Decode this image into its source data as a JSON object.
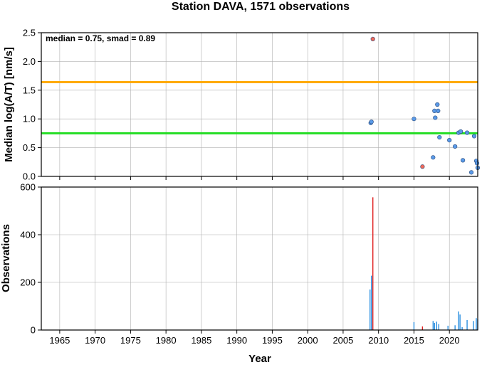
{
  "chart_data": [
    {
      "type": "scatter",
      "title": "Station DAVA, 1571 observations",
      "xlabel": "",
      "ylabel": "Median log(A/T) [nm/s]",
      "annotation": "median = 0.75, smad = 0.89",
      "xlim": [
        1962.4,
        2024.0
      ],
      "ylim": [
        0,
        2.5
      ],
      "xticks": [
        1965,
        1970,
        1975,
        1980,
        1985,
        1990,
        1995,
        2000,
        2005,
        2010,
        2015,
        2020
      ],
      "yticks": [
        0.0,
        0.5,
        1.0,
        1.5,
        2.0,
        2.5
      ],
      "grid": true,
      "hlines": [
        {
          "label": "median",
          "value": 0.75,
          "color": "#22dd22"
        },
        {
          "label": "median + smad",
          "value": 1.64,
          "color": "#ffaa00"
        }
      ],
      "series": [
        {
          "color": "#5a9ae8",
          "points": [
            {
              "x": 2008.9,
              "y": 0.93
            },
            {
              "x": 2009.0,
              "y": 0.95
            },
            {
              "x": 2015.0,
              "y": 1.0
            },
            {
              "x": 2017.7,
              "y": 0.33
            },
            {
              "x": 2017.9,
              "y": 1.14
            },
            {
              "x": 2018.0,
              "y": 1.02
            },
            {
              "x": 2018.3,
              "y": 1.25
            },
            {
              "x": 2018.4,
              "y": 1.14
            },
            {
              "x": 2018.6,
              "y": 0.68
            },
            {
              "x": 2020.0,
              "y": 0.63
            },
            {
              "x": 2020.8,
              "y": 0.52
            },
            {
              "x": 2021.3,
              "y": 0.76
            },
            {
              "x": 2021.6,
              "y": 0.78
            },
            {
              "x": 2021.9,
              "y": 0.28
            },
            {
              "x": 2022.5,
              "y": 0.76
            },
            {
              "x": 2023.1,
              "y": 0.07
            },
            {
              "x": 2023.5,
              "y": 0.7
            },
            {
              "x": 2023.8,
              "y": 0.27
            },
            {
              "x": 2023.9,
              "y": 0.23
            },
            {
              "x": 2024.0,
              "y": 0.15
            }
          ]
        },
        {
          "color": "#f06a5a",
          "points": [
            {
              "x": 2009.2,
              "y": 2.39
            },
            {
              "x": 2016.2,
              "y": 0.17
            }
          ]
        }
      ]
    },
    {
      "type": "bar",
      "title": "",
      "xlabel": "Year",
      "ylabel": "Observations",
      "xlim": [
        1962.4,
        2024.0
      ],
      "ylim": [
        0,
        600
      ],
      "xticks": [
        1965,
        1970,
        1975,
        1980,
        1985,
        1990,
        1995,
        2000,
        2005,
        2010,
        2015,
        2020
      ],
      "yticks": [
        0,
        200,
        400,
        600
      ],
      "grid": true,
      "series": [
        {
          "color": "#2b8fe0",
          "bars": [
            {
              "x": 2008.8,
              "y": 170
            },
            {
              "x": 2009.0,
              "y": 228
            },
            {
              "x": 2015.0,
              "y": 33
            },
            {
              "x": 2017.7,
              "y": 38
            },
            {
              "x": 2017.9,
              "y": 30
            },
            {
              "x": 2018.2,
              "y": 35
            },
            {
              "x": 2018.5,
              "y": 25
            },
            {
              "x": 2019.8,
              "y": 18
            },
            {
              "x": 2020.8,
              "y": 20
            },
            {
              "x": 2021.3,
              "y": 78
            },
            {
              "x": 2021.5,
              "y": 65
            },
            {
              "x": 2021.8,
              "y": 12
            },
            {
              "x": 2022.5,
              "y": 42
            },
            {
              "x": 2023.4,
              "y": 38
            },
            {
              "x": 2023.8,
              "y": 50
            },
            {
              "x": 2024.0,
              "y": 45
            }
          ]
        },
        {
          "color": "#e02020",
          "bars": [
            {
              "x": 2009.2,
              "y": 557
            },
            {
              "x": 2016.2,
              "y": 15
            }
          ]
        }
      ]
    }
  ]
}
